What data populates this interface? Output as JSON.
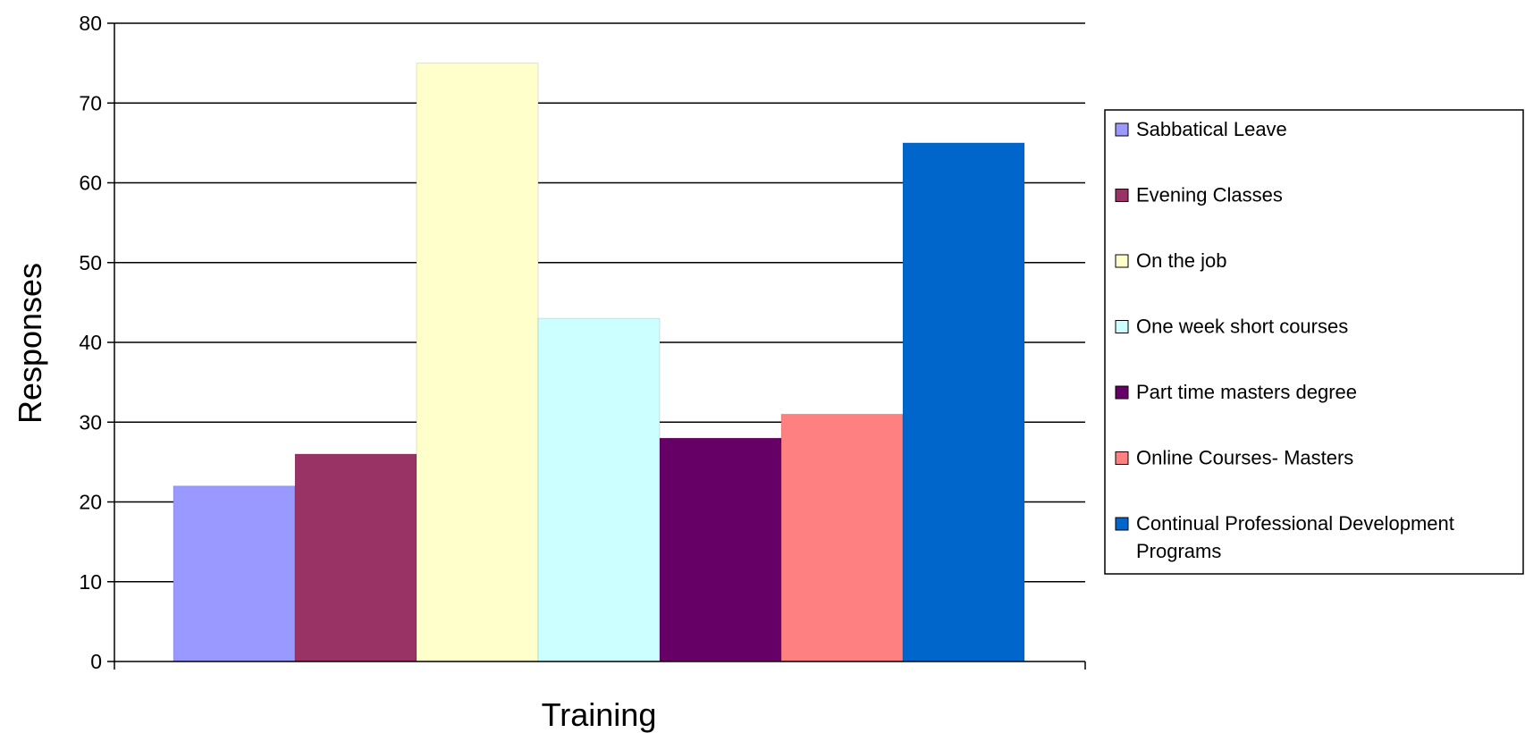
{
  "chart_data": {
    "type": "bar",
    "title": "",
    "xlabel": "Training",
    "ylabel": "Responses",
    "ylim": [
      0,
      80
    ],
    "yticks": [
      0,
      10,
      20,
      30,
      40,
      50,
      60,
      70,
      80
    ],
    "grid": true,
    "legend_position": "right",
    "series": [
      {
        "name": "Sabbatical Leave",
        "value": 22,
        "color": "#9999FF",
        "legend_lines": [
          "Sabbatical Leave"
        ]
      },
      {
        "name": "Evening Classes",
        "value": 26,
        "color": "#993366",
        "legend_lines": [
          "Evening Classes"
        ]
      },
      {
        "name": "On the job",
        "value": 75,
        "color": "#FFFFCC",
        "legend_lines": [
          "On the job"
        ]
      },
      {
        "name": "One week short courses",
        "value": 43,
        "color": "#CCFFFF",
        "legend_lines": [
          "One week short courses"
        ]
      },
      {
        "name": "Part time masters degree",
        "value": 28,
        "color": "#660066",
        "legend_lines": [
          "Part time masters degree"
        ]
      },
      {
        "name": "Online Courses- Masters",
        "value": 31,
        "color": "#FF8080",
        "legend_lines": [
          "Online Courses- Masters"
        ]
      },
      {
        "name": "Continual Professional Development Programs",
        "value": 65,
        "color": "#0066CC",
        "legend_lines": [
          "Continual Professional Development",
          "Programs"
        ]
      }
    ]
  }
}
